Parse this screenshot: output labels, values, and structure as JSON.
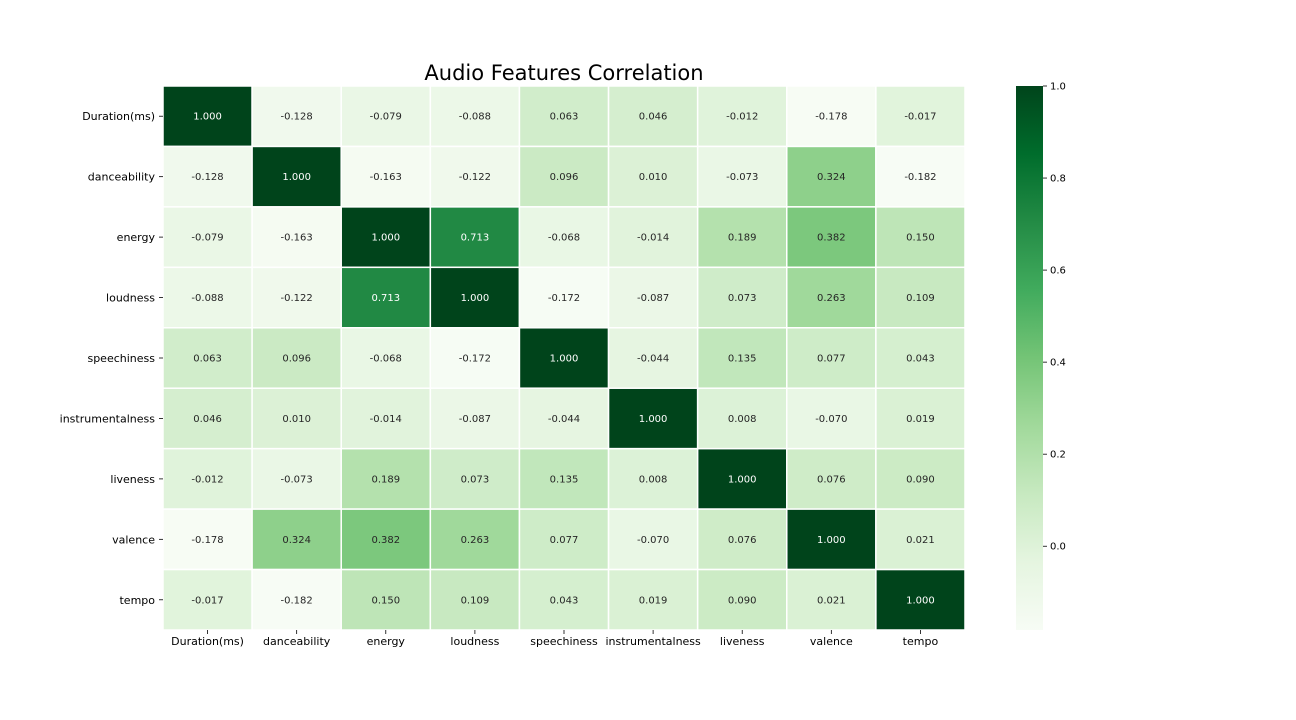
{
  "chart_data": {
    "type": "heatmap",
    "title": "Audio Features Correlation",
    "xlabel": "",
    "ylabel": "",
    "colormap": "Greens",
    "colors": [
      "#f7fcf5",
      "#e5f5e0",
      "#c7e9c0",
      "#a1d99b",
      "#74c476",
      "#41ab5d",
      "#238b45",
      "#006d2c",
      "#00441b"
    ],
    "vmin": -0.182,
    "vmax": 1.0,
    "value_format": "3 decimals",
    "categories": [
      "Duration(ms)",
      "danceability",
      "energy",
      "loudness",
      "speechiness",
      "instrumentalness",
      "liveness",
      "valence",
      "tempo"
    ],
    "matrix": [
      [
        1.0,
        -0.128,
        -0.079,
        -0.088,
        0.063,
        0.046,
        -0.012,
        -0.178,
        -0.017
      ],
      [
        -0.128,
        1.0,
        -0.163,
        -0.122,
        0.096,
        0.01,
        -0.073,
        0.324,
        -0.182
      ],
      [
        -0.079,
        -0.163,
        1.0,
        0.713,
        -0.068,
        -0.014,
        0.189,
        0.382,
        0.15
      ],
      [
        -0.088,
        -0.122,
        0.713,
        1.0,
        -0.172,
        -0.087,
        0.073,
        0.263,
        0.109
      ],
      [
        0.063,
        0.096,
        -0.068,
        -0.172,
        1.0,
        -0.044,
        0.135,
        0.077,
        0.043
      ],
      [
        0.046,
        0.01,
        -0.014,
        -0.087,
        -0.044,
        1.0,
        0.008,
        -0.07,
        0.019
      ],
      [
        -0.012,
        -0.073,
        0.189,
        0.073,
        0.135,
        0.008,
        1.0,
        0.076,
        0.09
      ],
      [
        -0.178,
        0.324,
        0.382,
        0.263,
        0.077,
        -0.07,
        0.076,
        1.0,
        0.021
      ],
      [
        -0.017,
        -0.182,
        0.15,
        0.109,
        0.043,
        0.019,
        0.09,
        0.021,
        1.0
      ]
    ],
    "colorbar": {
      "ticks": [
        "1.0",
        "0.8",
        "0.6",
        "0.4",
        "0.2",
        "0.0"
      ]
    },
    "grid": false,
    "cell_borders": "white"
  }
}
